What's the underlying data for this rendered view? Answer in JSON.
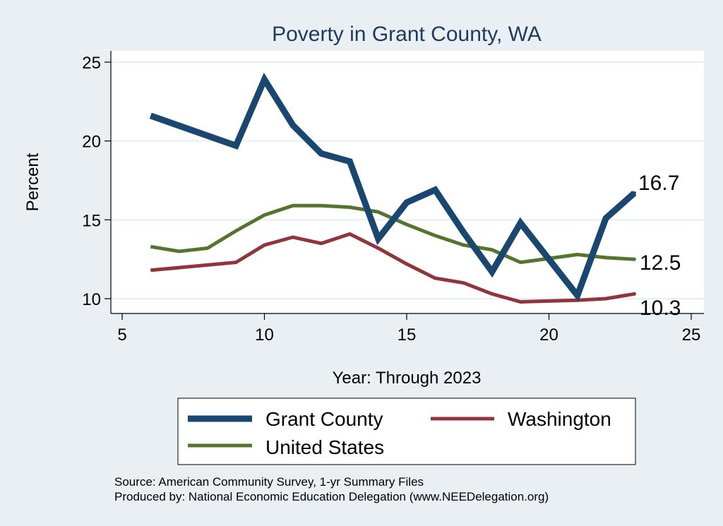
{
  "chart_data": {
    "type": "line",
    "title": "Poverty in Grant County, WA",
    "xlabel": "Year: Through 2023",
    "ylabel": "Percent",
    "xlim": [
      5,
      25
    ],
    "ylim": [
      10,
      25
    ],
    "xticks": [
      5,
      10,
      15,
      20,
      25
    ],
    "yticks": [
      10,
      15,
      20,
      25
    ],
    "grid": true,
    "legend_position": "bottom",
    "series": [
      {
        "name": "Grant County",
        "color": "#1a476f",
        "x": [
          6,
          9,
          10,
          11,
          12,
          13,
          14,
          15,
          16,
          17,
          18,
          19,
          21,
          22,
          23
        ],
        "y": [
          21.6,
          19.7,
          23.9,
          21.0,
          19.2,
          18.7,
          13.8,
          16.1,
          16.9,
          14.2,
          11.7,
          14.8,
          10.2,
          15.1,
          16.7
        ],
        "end_label": "16.7"
      },
      {
        "name": "Washington",
        "color": "#90353b",
        "x": [
          6,
          9,
          10,
          11,
          12,
          13,
          14,
          15,
          16,
          17,
          18,
          19,
          21,
          22,
          23
        ],
        "y": [
          11.8,
          12.3,
          13.4,
          13.9,
          13.5,
          14.1,
          13.2,
          12.2,
          11.3,
          11.0,
          10.3,
          9.8,
          9.9,
          10.0,
          10.3
        ],
        "end_label": "10.3"
      },
      {
        "name": "United States",
        "color": "#55752f",
        "x": [
          6,
          7,
          8,
          9,
          10,
          11,
          12,
          13,
          14,
          15,
          16,
          17,
          18,
          19,
          21,
          22,
          23
        ],
        "y": [
          13.3,
          13.0,
          13.2,
          14.3,
          15.3,
          15.9,
          15.9,
          15.8,
          15.5,
          14.7,
          14.0,
          13.4,
          13.1,
          12.3,
          12.8,
          12.6,
          12.5
        ],
        "end_label": "12.5"
      }
    ],
    "legend": {
      "items": [
        "Grant County",
        "Washington",
        "United States"
      ]
    },
    "notes": [
      "Source: American Community Survey, 1-yr Summary Files",
      "Produced by: National Economic Education Delegation (www.NEEDelegation.org)"
    ]
  }
}
